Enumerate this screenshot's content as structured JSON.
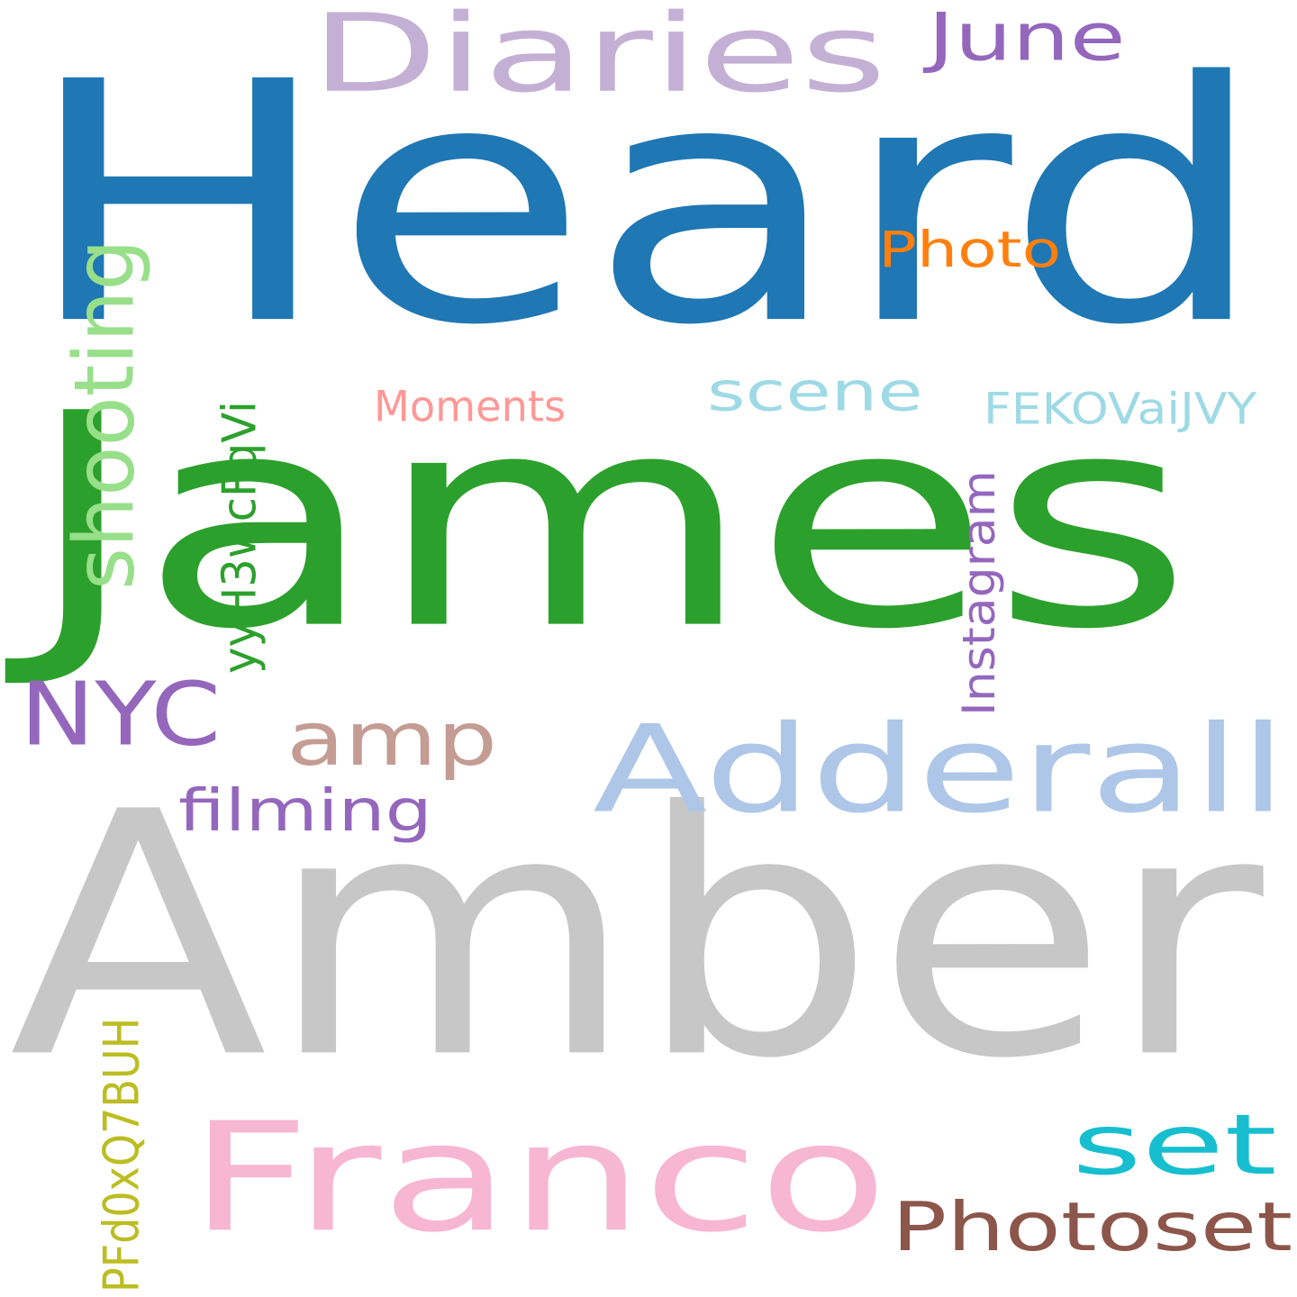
{
  "words": [
    {
      "text": "Heard",
      "color": "#1f77b4"
    },
    {
      "text": "James",
      "color": "#2ca02c"
    },
    {
      "text": "Amber",
      "color": "#c7c7c7"
    },
    {
      "text": "Diaries",
      "color": "#c5b0d5"
    },
    {
      "text": "June",
      "color": "#9467bd"
    },
    {
      "text": "Photo",
      "color": "#ff7f0e"
    },
    {
      "text": "shooting",
      "color": "#98df8a"
    },
    {
      "text": "scene",
      "color": "#9edae5"
    },
    {
      "text": "Moments",
      "color": "#ff9896"
    },
    {
      "text": "FEKOVaiJVY",
      "color": "#9edae5"
    },
    {
      "text": "yyH3wcFqVi",
      "color": "#2ca02c"
    },
    {
      "text": "Instagram",
      "color": "#9467bd"
    },
    {
      "text": "NYC",
      "color": "#9467bd"
    },
    {
      "text": "amp",
      "color": "#c49c94"
    },
    {
      "text": "Adderall",
      "color": "#aec7e8"
    },
    {
      "text": "filming",
      "color": "#9467bd"
    },
    {
      "text": "Franco",
      "color": "#f7b6d2"
    },
    {
      "text": "set",
      "color": "#17becf"
    },
    {
      "text": "Photoset",
      "color": "#8c564b"
    },
    {
      "text": "PFd0xQ7BUH",
      "color": "#bcbd22"
    }
  ]
}
